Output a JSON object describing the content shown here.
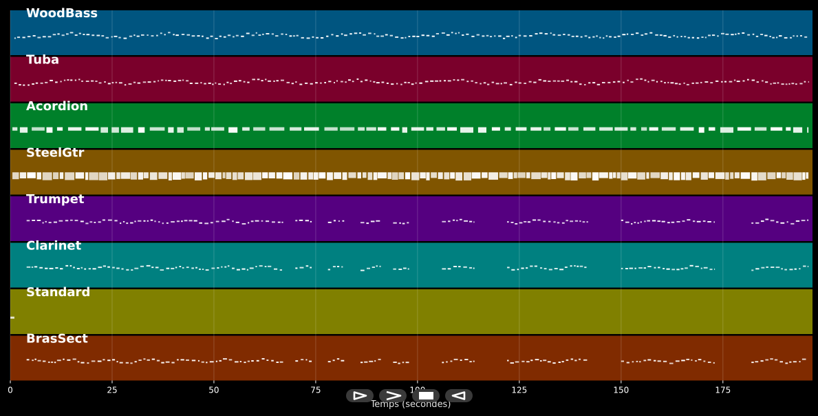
{
  "chart_data": {
    "type": "piano-roll",
    "x_range": [
      0,
      197
    ],
    "x_ticks": [
      0,
      25,
      50,
      75,
      100,
      125,
      150,
      175
    ],
    "xlabel": "Temps (secondes)",
    "tracks": [
      {
        "name": "WoodBass",
        "color": "#005580",
        "style": "bass",
        "segments": [
          [
            1,
            196
          ]
        ]
      },
      {
        "name": "Tuba",
        "color": "#7a002b",
        "style": "bass",
        "segments": [
          [
            1,
            196
          ]
        ]
      },
      {
        "name": "Acordion",
        "color": "#00802a",
        "style": "chords",
        "segments": [
          [
            0.5,
            196
          ]
        ]
      },
      {
        "name": "SteelGtr",
        "color": "#805500",
        "style": "dense",
        "segments": [
          [
            0.5,
            196
          ]
        ]
      },
      {
        "name": "Trumpet",
        "color": "#550080",
        "style": "melody",
        "segments": [
          [
            4,
            67
          ],
          [
            70,
            74
          ],
          [
            78,
            82
          ],
          [
            86,
            91
          ],
          [
            94,
            98
          ],
          [
            106,
            114
          ],
          [
            122,
            142
          ],
          [
            150,
            173
          ],
          [
            182,
            196
          ]
        ]
      },
      {
        "name": "Clarinet",
        "color": "#008080",
        "style": "melody",
        "segments": [
          [
            4,
            67
          ],
          [
            70,
            74
          ],
          [
            78,
            82
          ],
          [
            86,
            91
          ],
          [
            94,
            98
          ],
          [
            106,
            114
          ],
          [
            122,
            142
          ],
          [
            150,
            173
          ],
          [
            182,
            196
          ]
        ]
      },
      {
        "name": "Standard",
        "color": "#808000",
        "style": "drum",
        "segments": [
          [
            0,
            1
          ]
        ]
      },
      {
        "name": "BrasSect",
        "color": "#802b00",
        "style": "melody",
        "segments": [
          [
            4,
            67
          ],
          [
            70,
            74
          ],
          [
            78,
            82
          ],
          [
            86,
            91
          ],
          [
            94,
            98
          ],
          [
            106,
            114
          ],
          [
            122,
            142
          ],
          [
            150,
            173
          ],
          [
            182,
            196
          ]
        ]
      }
    ]
  },
  "controls": [
    {
      "name": "play-button",
      "icon": "play-icon"
    },
    {
      "name": "fast-forward-button",
      "icon": "forward-icon"
    },
    {
      "name": "stop-button",
      "icon": "stop-icon"
    },
    {
      "name": "rewind-button",
      "icon": "rewind-icon"
    }
  ]
}
